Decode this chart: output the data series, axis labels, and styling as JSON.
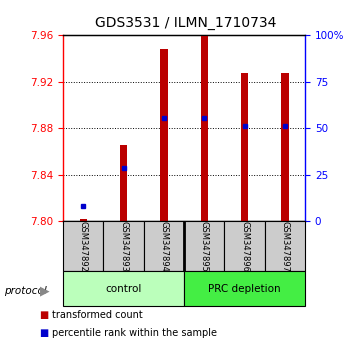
{
  "title": "GDS3531 / ILMN_1710734",
  "samples": [
    "GSM347892",
    "GSM347893",
    "GSM347894",
    "GSM347895",
    "GSM347896",
    "GSM347897"
  ],
  "bar_bottom": 7.8,
  "bar_tops": [
    7.802,
    7.866,
    7.948,
    7.96,
    7.928,
    7.928
  ],
  "blue_dots": [
    7.813,
    7.846,
    7.889,
    7.889,
    7.882,
    7.882
  ],
  "ylim": [
    7.8,
    7.96
  ],
  "yticks_left": [
    7.8,
    7.84,
    7.88,
    7.92,
    7.96
  ],
  "right_yticks_pct": [
    0,
    25,
    50,
    75,
    100
  ],
  "bar_color": "#bb0000",
  "dot_color": "#0000cc",
  "control_color": "#bbffbb",
  "prc_color": "#44ee44",
  "bar_width": 0.18,
  "title_fontsize": 10,
  "tick_fontsize": 7.5,
  "legend_fontsize": 7,
  "sample_fontsize": 6,
  "group_fontsize": 7.5
}
